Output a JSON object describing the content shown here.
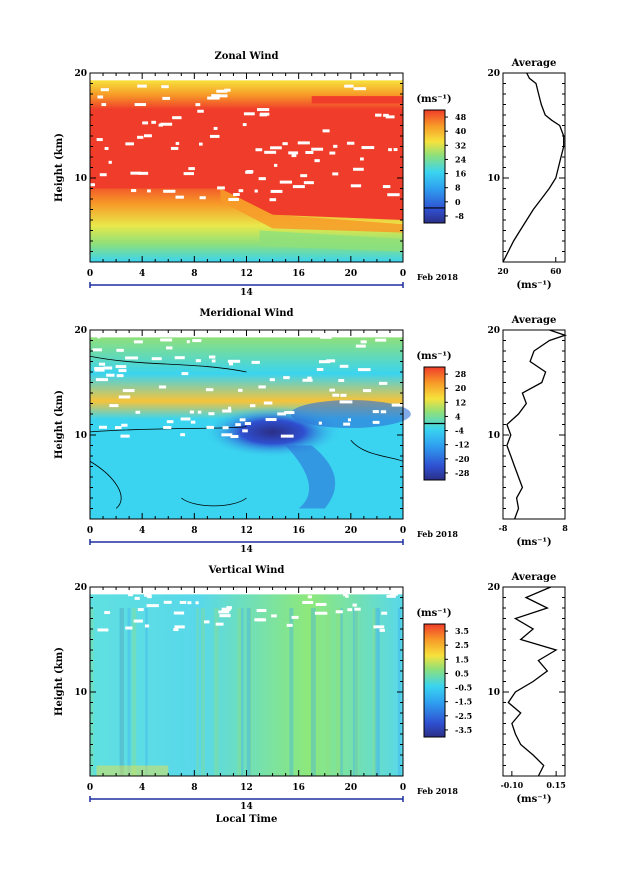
{
  "date_label": "Feb 2018",
  "day_label": "14",
  "x_axis_label": "Local Time",
  "x_ticks": [
    "0",
    "4",
    "8",
    "12",
    "16",
    "20",
    "0"
  ],
  "y_axis_label": "Height (km)",
  "y_ticks": [
    "10",
    "20"
  ],
  "unit_label": "(ms⁻¹)",
  "average_title": "Average",
  "chart_data": [
    {
      "type": "heatmap",
      "title": "Zonal Wind",
      "xlabel": "",
      "ylabel": "Height (km)",
      "xlim": [
        0,
        24
      ],
      "ylim": [
        2,
        20
      ],
      "colorbar_ticks": [
        "48",
        "40",
        "32",
        "24",
        "16",
        "8",
        "0",
        "-8"
      ],
      "colorbar_range": [
        -8,
        52
      ],
      "zero_line": 0
    },
    {
      "type": "line",
      "title": "Average",
      "ylabel": "Height (km)",
      "xlabel": "(ms⁻¹)",
      "x_ticks": [
        "20",
        "60"
      ],
      "xlim": [
        20,
        67
      ],
      "ylim": [
        2,
        20
      ],
      "points": [
        [
          20,
          2
        ],
        [
          24,
          3
        ],
        [
          28,
          4
        ],
        [
          33,
          5
        ],
        [
          38,
          6
        ],
        [
          43,
          7
        ],
        [
          49,
          8
        ],
        [
          55,
          9
        ],
        [
          60,
          10
        ],
        [
          62,
          11
        ],
        [
          64,
          12
        ],
        [
          66,
          13
        ],
        [
          66,
          14
        ],
        [
          63,
          15
        ],
        [
          57,
          15.5
        ],
        [
          52,
          16
        ],
        [
          49,
          17
        ],
        [
          47,
          18
        ],
        [
          45,
          19
        ],
        [
          40,
          19.5
        ],
        [
          38,
          20
        ]
      ]
    },
    {
      "type": "heatmap",
      "title": "Meridional Wind",
      "xlabel": "",
      "ylabel": "Height (km)",
      "xlim": [
        0,
        24
      ],
      "ylim": [
        2,
        20
      ],
      "colorbar_ticks": [
        "28",
        "20",
        "12",
        "4",
        "-4",
        "-12",
        "-20",
        "-28"
      ],
      "colorbar_range": [
        -32,
        32
      ],
      "zero_line": 0
    },
    {
      "type": "line",
      "title": "Average",
      "ylabel": "Height (km)",
      "xlabel": "(ms⁻¹)",
      "x_ticks": [
        "-8",
        "8"
      ],
      "xlim": [
        -8,
        8
      ],
      "ylim": [
        2,
        20
      ],
      "points": [
        [
          -5,
          2
        ],
        [
          -4,
          3
        ],
        [
          -4.5,
          4
        ],
        [
          -3,
          5
        ],
        [
          -4,
          6
        ],
        [
          -5,
          7
        ],
        [
          -6,
          8
        ],
        [
          -7,
          9
        ],
        [
          -6,
          10
        ],
        [
          -7,
          11
        ],
        [
          -4,
          12
        ],
        [
          -2,
          13
        ],
        [
          -3,
          14
        ],
        [
          2,
          15
        ],
        [
          3,
          16
        ],
        [
          -1,
          17
        ],
        [
          0,
          18
        ],
        [
          4,
          19
        ],
        [
          8,
          19.5
        ],
        [
          4,
          20
        ]
      ]
    },
    {
      "type": "heatmap",
      "title": "Vertical Wind",
      "xlabel": "Local Time",
      "ylabel": "Height (km)",
      "xlim": [
        0,
        24
      ],
      "ylim": [
        2,
        20
      ],
      "colorbar_ticks": [
        "3.5",
        "2.5",
        "1.5",
        "0.5",
        "-0.5",
        "-1.5",
        "-2.5",
        "-3.5"
      ],
      "colorbar_range": [
        -4,
        4
      ],
      "zero_line": null
    },
    {
      "type": "line",
      "title": "Average",
      "ylabel": "Height (km)",
      "xlabel": "(ms⁻¹)",
      "x_ticks": [
        "-0.10",
        "0.15"
      ],
      "xlim": [
        -0.15,
        0.2
      ],
      "ylim": [
        2,
        20
      ],
      "points": [
        [
          0.05,
          2
        ],
        [
          0.08,
          3
        ],
        [
          0.02,
          4
        ],
        [
          -0.05,
          5
        ],
        [
          -0.08,
          6
        ],
        [
          -0.1,
          7
        ],
        [
          -0.05,
          8
        ],
        [
          -0.12,
          9
        ],
        [
          -0.08,
          10
        ],
        [
          0.02,
          11
        ],
        [
          0.1,
          12
        ],
        [
          0.05,
          13
        ],
        [
          0.15,
          14
        ],
        [
          -0.05,
          15
        ],
        [
          0.02,
          16
        ],
        [
          -0.08,
          17
        ],
        [
          0.1,
          18
        ],
        [
          -0.02,
          19
        ],
        [
          0.12,
          20
        ]
      ]
    }
  ],
  "colors": {
    "dark_blue": "#2b2f86",
    "blue": "#2f6fd8",
    "cyan": "#3ad4f0",
    "green": "#8fe07a",
    "yellow": "#f7e23c",
    "orange": "#f79a28",
    "red": "#f03c2a",
    "axis_blue": "#1d2f9f"
  }
}
